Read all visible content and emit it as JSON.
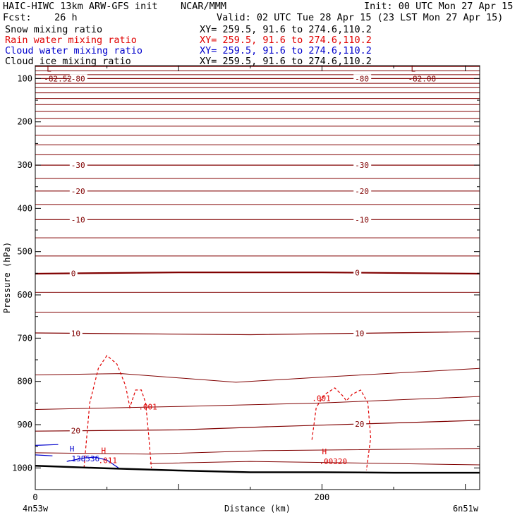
{
  "header": {
    "model": "HAIC-HIWC 13km ARW-GFS init    NCAR/MMM",
    "init": "Init: 00 UTC Mon 27 Apr 15",
    "fcst": "Fcst:    26 h",
    "valid": "Valid: 02 UTC Tue 28 Apr 15 (23 LST Mon 27 Apr 15)",
    "fields": [
      {
        "name": "Snow mixing ratio",
        "xy": "XY= 259.5, 91.6 to 274.6,110.2",
        "color": "#000000"
      },
      {
        "name": "Rain water mixing ratio",
        "xy": "XY= 259.5, 91.6 to 274.6,110.2",
        "color": "#e00000"
      },
      {
        "name": "Cloud water mixing ratio",
        "xy": "XY= 259.5, 91.6 to 274.6,110.2",
        "color": "#0000cc"
      },
      {
        "name": "Cloud ice mixing ratio",
        "xy": "XY= 259.5, 91.6 to 274.6,110.2",
        "color": "#000000"
      }
    ]
  },
  "colors": {
    "temperature": "#800000",
    "rain": "#e00000",
    "cloud_water": "#0000cc",
    "terrain": "#000000"
  },
  "chart_data": {
    "type": "line",
    "xlabel": "Distance (km)",
    "ylabel": "Pressure (hPa)",
    "xlim": [
      0,
      310
    ],
    "ylim": [
      1050,
      70
    ],
    "y_scale": "linear, inverted",
    "x_ticks": [
      0,
      200
    ],
    "y_ticks": [
      100,
      200,
      300,
      400,
      500,
      600,
      700,
      800,
      900,
      1000
    ],
    "x_endpoint_labels": {
      "left": "4n53w",
      "right": "6n51w"
    },
    "temperature_isotherms": [
      {
        "label": "-80",
        "x": [
          0,
          310
        ],
        "p": [
          100,
          100
        ]
      },
      {
        "label": "-30",
        "x": [
          0,
          310
        ],
        "p": [
          300,
          300
        ]
      },
      {
        "label": "-20",
        "x": [
          0,
          310
        ],
        "p": [
          360,
          360
        ]
      },
      {
        "label": "-10",
        "x": [
          0,
          310
        ],
        "p": [
          426,
          426
        ]
      },
      {
        "label": "0",
        "x": [
          0,
          100,
          200,
          310
        ],
        "p": [
          551,
          548,
          548,
          551
        ]
      },
      {
        "label": "10",
        "x": [
          0,
          150,
          310
        ],
        "p": [
          688,
          692,
          685
        ]
      },
      {
        "label": "20",
        "x": [
          0,
          100,
          160,
          310
        ],
        "p": [
          915,
          912,
          905,
          890
        ]
      }
    ],
    "extrema": [
      {
        "type": "L",
        "value": "-82.52",
        "x": 8,
        "p": 100
      },
      {
        "type": "L",
        "value": "-82.08",
        "x": 262,
        "p": 100
      },
      {
        "type": "H",
        "value": ".138536",
        "x": 24,
        "p": 978
      },
      {
        "type": "H",
        "value": ".011",
        "x": 46,
        "p": 982
      },
      {
        "type": "H",
        "value": ".00320",
        "x": 200,
        "p": 985
      }
    ],
    "rain_water_contour_labels": [
      ".001",
      ".001"
    ],
    "terrain_surface": {
      "x": [
        0,
        50,
        100,
        150,
        200,
        250,
        310
      ],
      "p": [
        995,
        1001,
        1006,
        1010,
        1010,
        1011,
        1011
      ]
    }
  }
}
